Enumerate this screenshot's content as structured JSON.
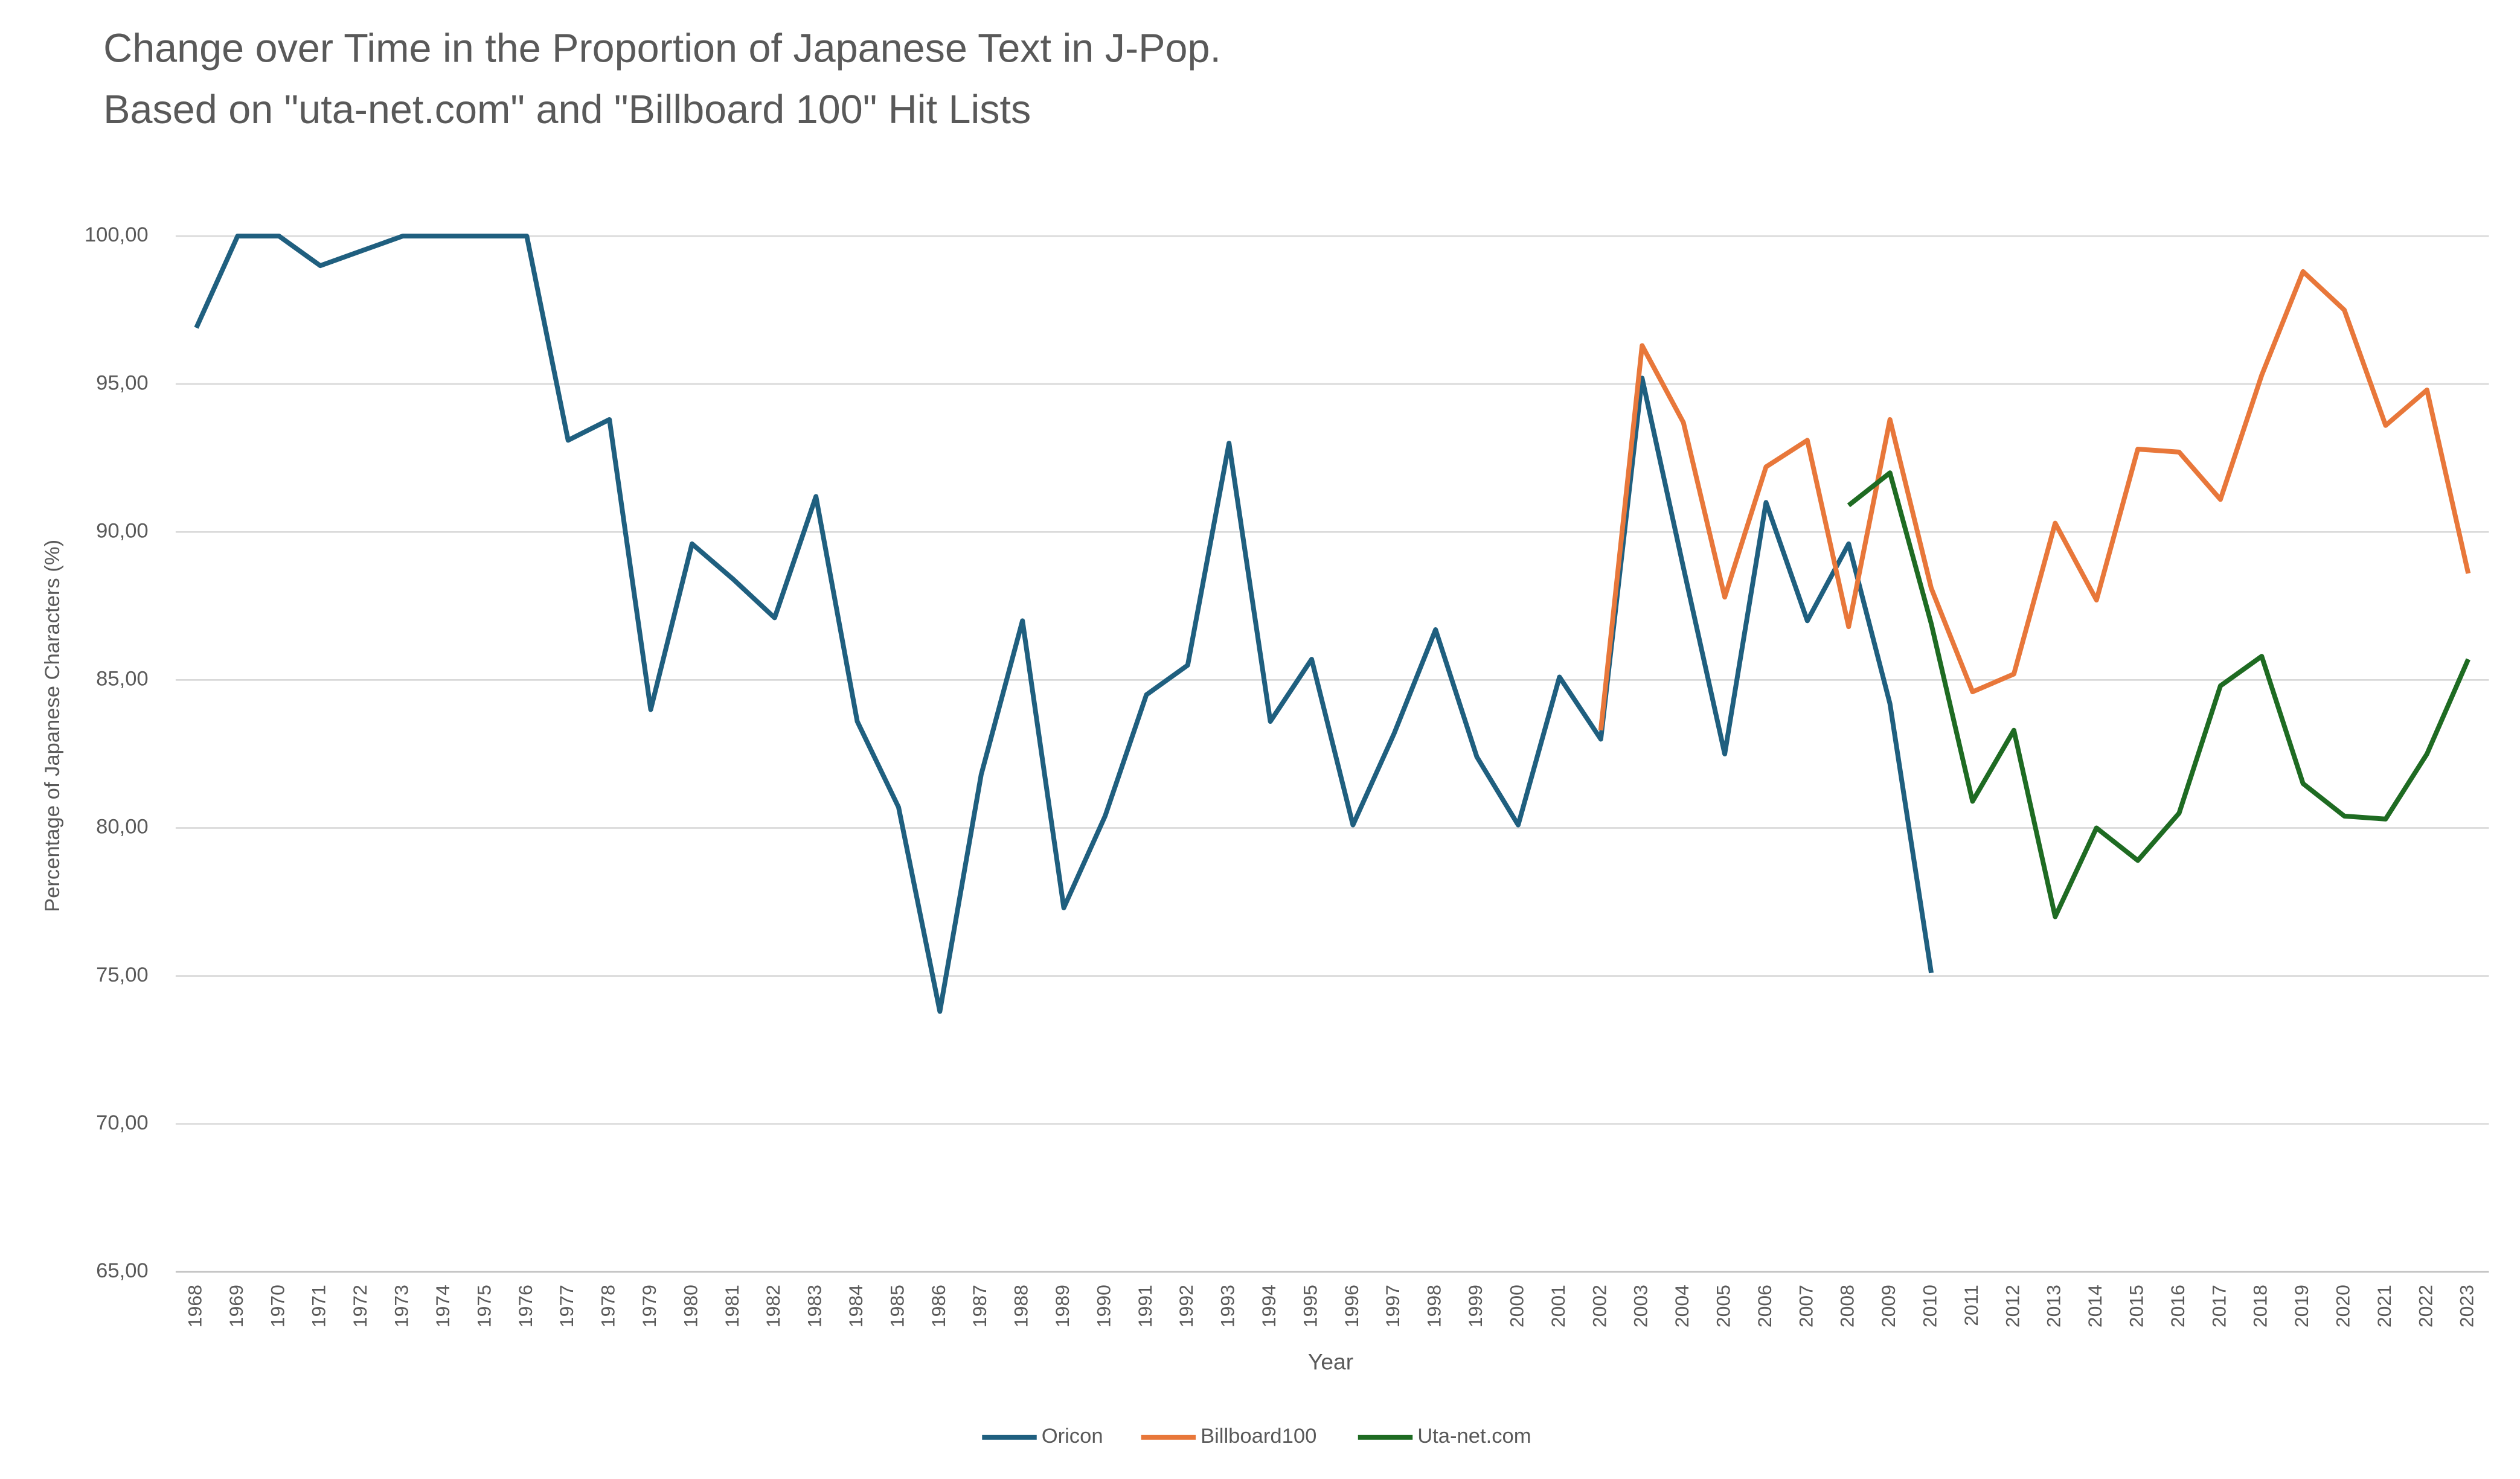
{
  "chart_data": {
    "type": "line",
    "title": [
      "Change over Time in the Proportion of Japanese Text in J-Pop.",
      "Based on \"uta-net.com\" and \"Billboard 100\" Hit Lists"
    ],
    "x_label": "Year",
    "y_label": "Percentage of Japanese Characters (%)",
    "categories": [
      "1968",
      "1969",
      "1970",
      "1971",
      "1972",
      "1973",
      "1974",
      "1975",
      "1976",
      "1977",
      "1978",
      "1979",
      "1980",
      "1981",
      "1982",
      "1983",
      "1984",
      "1985",
      "1986",
      "1987",
      "1988",
      "1989",
      "1990",
      "1991",
      "1992",
      "1993",
      "1994",
      "1995",
      "1996",
      "1997",
      "1998",
      "1999",
      "2000",
      "2001",
      "2002",
      "2003",
      "2004",
      "2005",
      "2006",
      "2007",
      "2008",
      "2009",
      "2010",
      "2011",
      "2012",
      "2013",
      "2014",
      "2015",
      "2016",
      "2017",
      "2018",
      "2019",
      "2020",
      "2021",
      "2022",
      "2023"
    ],
    "series": [
      {
        "name": "Oricon",
        "color": "#1f5f7f",
        "values": [
          96.9,
          100,
          100,
          99.0,
          99.5,
          100,
          100,
          100,
          100,
          93.1,
          93.8,
          84.0,
          89.6,
          88.4,
          87.1,
          91.2,
          83.6,
          80.7,
          73.8,
          81.8,
          87.0,
          77.3,
          80.4,
          84.5,
          85.5,
          93.0,
          83.6,
          85.7,
          80.1,
          83.2,
          86.7,
          82.4,
          80.1,
          85.1,
          83.0,
          95.2,
          88.8,
          82.5,
          91.0,
          87.0,
          89.6,
          84.2,
          75.1,
          null,
          null,
          null,
          null,
          null,
          null,
          null,
          null,
          null,
          null,
          null,
          null,
          null
        ]
      },
      {
        "name": "Billboard100",
        "color": "#e8773a",
        "values": [
          null,
          null,
          null,
          null,
          null,
          null,
          null,
          null,
          null,
          null,
          null,
          null,
          null,
          null,
          null,
          null,
          null,
          null,
          null,
          null,
          null,
          null,
          null,
          null,
          null,
          null,
          null,
          null,
          null,
          null,
          null,
          null,
          null,
          null,
          83.3,
          96.3,
          93.7,
          87.8,
          92.2,
          93.1,
          86.8,
          93.8,
          88.1,
          84.6,
          85.2,
          90.3,
          87.7,
          92.8,
          92.7,
          91.1,
          95.3,
          98.8,
          97.5,
          93.6,
          94.8,
          88.6
        ]
      },
      {
        "name": "Uta-net.com",
        "color": "#1e6b22",
        "values": [
          null,
          null,
          null,
          null,
          null,
          null,
          null,
          null,
          null,
          null,
          null,
          null,
          null,
          null,
          null,
          null,
          null,
          null,
          null,
          null,
          null,
          null,
          null,
          null,
          null,
          null,
          null,
          null,
          null,
          null,
          null,
          null,
          null,
          null,
          null,
          null,
          null,
          null,
          null,
          null,
          90.9,
          92.0,
          86.9,
          80.9,
          83.3,
          77.0,
          80.0,
          78.9,
          80.5,
          84.8,
          85.8,
          81.5,
          80.4,
          80.3,
          82.5,
          85.7
        ]
      }
    ],
    "ylim": [
      65,
      100
    ],
    "yticks": [
      {
        "value": 65,
        "label": "65,00"
      },
      {
        "value": 70,
        "label": "70,00"
      },
      {
        "value": 75,
        "label": "75,00"
      },
      {
        "value": 80,
        "label": "80,00"
      },
      {
        "value": 85,
        "label": "85,00"
      },
      {
        "value": 90,
        "label": "90,00"
      },
      {
        "value": 95,
        "label": "95,00"
      },
      {
        "value": 100,
        "label": "100,00"
      }
    ],
    "grid": true,
    "legend": "bottom"
  }
}
